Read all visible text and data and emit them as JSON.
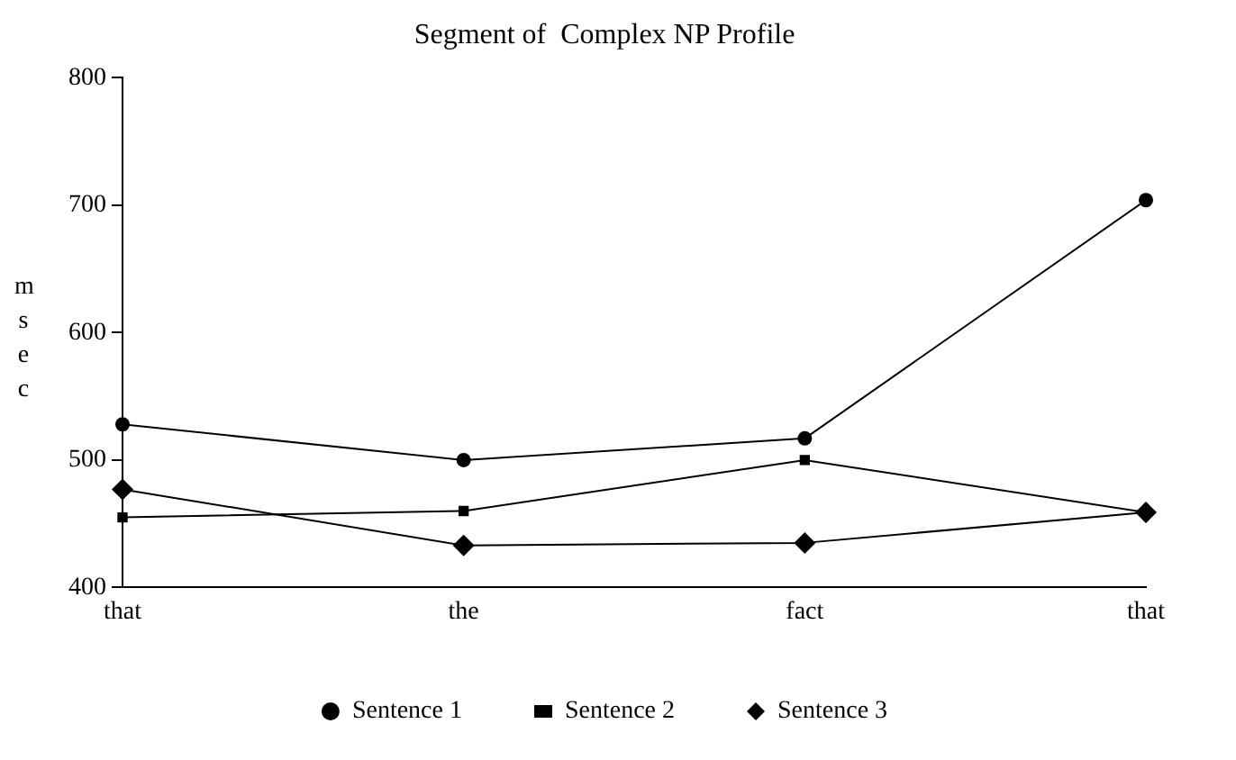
{
  "chart_data": {
    "type": "line",
    "title": "Segment of  Complex NP Profile",
    "ylabel": "msec",
    "categories": [
      "that",
      "the",
      "fact",
      "that"
    ],
    "series": [
      {
        "name": "Sentence 1",
        "color": "#000000",
        "marker": "circle",
        "values": [
          528,
          500,
          517,
          704
        ]
      },
      {
        "name": "Sentence 2",
        "color": "#000000",
        "marker": "square",
        "values": [
          455,
          460,
          500,
          459
        ]
      },
      {
        "name": "Sentence 3",
        "color": "#000000",
        "marker": "diamond",
        "values": [
          477,
          433,
          435,
          459
        ]
      }
    ],
    "ylim": [
      400,
      800
    ],
    "yticks": [
      400,
      500,
      600,
      700,
      800
    ],
    "grid": false,
    "legend": "bottom",
    "line_style": "solid"
  }
}
